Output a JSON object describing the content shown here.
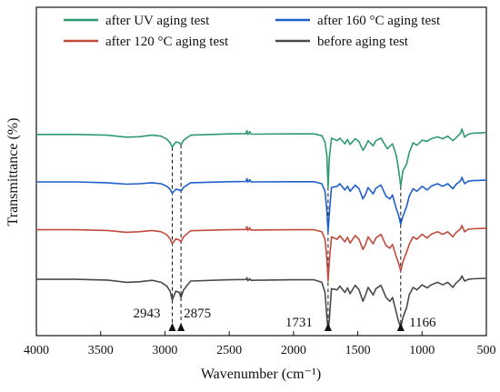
{
  "chart_data": {
    "type": "line",
    "title": "",
    "xlabel": "Wavenumber (cm⁻¹)",
    "ylabel": "Transmittance (%)",
    "xlim": [
      4000,
      500
    ],
    "x_reversed": true,
    "x_ticks": [
      4000,
      3500,
      3000,
      2500,
      2000,
      1500,
      1000,
      500
    ],
    "x_tick_labels": [
      "4000",
      "3500",
      "3000",
      "2500",
      "2000",
      "1500",
      "1000",
      "500"
    ],
    "y_ticks_shown": false,
    "ylim": [
      0,
      1
    ],
    "legend": {
      "placement": "top",
      "columns": 2,
      "entries": [
        "after UV aging test",
        "after 160 °C aging test",
        "after 120 °C aging test",
        "before aging test"
      ]
    },
    "annotations": [
      {
        "x": 2943,
        "label": "2943"
      },
      {
        "x": 2875,
        "label": "2875"
      },
      {
        "x": 1731,
        "label": "1731"
      },
      {
        "x": 1166,
        "label": "1166"
      }
    ],
    "series": [
      {
        "name": "after UV aging test",
        "color": "#2e9a6e",
        "points": [
          [
            4000,
            0.785
          ],
          [
            3700,
            0.785
          ],
          [
            3450,
            0.782
          ],
          [
            3300,
            0.774
          ],
          [
            3200,
            0.776
          ],
          [
            3100,
            0.782
          ],
          [
            3030,
            0.778
          ],
          [
            2985,
            0.766
          ],
          [
            2960,
            0.752
          ],
          [
            2943,
            0.735
          ],
          [
            2915,
            0.755
          ],
          [
            2890,
            0.752
          ],
          [
            2875,
            0.744
          ],
          [
            2855,
            0.762
          ],
          [
            2800,
            0.782
          ],
          [
            2500,
            0.787
          ],
          [
            2370,
            0.788
          ],
          [
            2362,
            0.8
          ],
          [
            2355,
            0.784
          ],
          [
            2340,
            0.796
          ],
          [
            2332,
            0.786
          ],
          [
            2000,
            0.787
          ],
          [
            1840,
            0.787
          ],
          [
            1780,
            0.78
          ],
          [
            1755,
            0.755
          ],
          [
            1740,
            0.7
          ],
          [
            1731,
            0.578
          ],
          [
            1722,
            0.69
          ],
          [
            1705,
            0.77
          ],
          [
            1660,
            0.76
          ],
          [
            1640,
            0.77
          ],
          [
            1600,
            0.748
          ],
          [
            1580,
            0.765
          ],
          [
            1560,
            0.745
          ],
          [
            1520,
            0.768
          ],
          [
            1490,
            0.756
          ],
          [
            1460,
            0.722
          ],
          [
            1440,
            0.738
          ],
          [
            1420,
            0.76
          ],
          [
            1380,
            0.74
          ],
          [
            1360,
            0.76
          ],
          [
            1320,
            0.77
          ],
          [
            1270,
            0.728
          ],
          [
            1250,
            0.738
          ],
          [
            1230,
            0.748
          ],
          [
            1200,
            0.7
          ],
          [
            1185,
            0.655
          ],
          [
            1166,
            0.58
          ],
          [
            1150,
            0.64
          ],
          [
            1120,
            0.668
          ],
          [
            1100,
            0.712
          ],
          [
            1070,
            0.752
          ],
          [
            1040,
            0.742
          ],
          [
            1000,
            0.762
          ],
          [
            960,
            0.758
          ],
          [
            930,
            0.768
          ],
          [
            880,
            0.775
          ],
          [
            840,
            0.768
          ],
          [
            800,
            0.778
          ],
          [
            760,
            0.76
          ],
          [
            740,
            0.77
          ],
          [
            700,
            0.79
          ],
          [
            690,
            0.806
          ],
          [
            670,
            0.774
          ],
          [
            640,
            0.786
          ],
          [
            600,
            0.79
          ],
          [
            500,
            0.792
          ]
        ]
      },
      {
        "name": "after 160 °C aging test",
        "color": "#1f5fcc",
        "points": [
          [
            4000,
            0.597
          ],
          [
            3700,
            0.597
          ],
          [
            3450,
            0.594
          ],
          [
            3300,
            0.588
          ],
          [
            3200,
            0.59
          ],
          [
            3100,
            0.594
          ],
          [
            3030,
            0.59
          ],
          [
            2985,
            0.58
          ],
          [
            2960,
            0.568
          ],
          [
            2943,
            0.552
          ],
          [
            2915,
            0.568
          ],
          [
            2890,
            0.566
          ],
          [
            2875,
            0.56
          ],
          [
            2855,
            0.576
          ],
          [
            2800,
            0.594
          ],
          [
            2500,
            0.598
          ],
          [
            2370,
            0.599
          ],
          [
            2362,
            0.61
          ],
          [
            2355,
            0.596
          ],
          [
            2340,
            0.606
          ],
          [
            2332,
            0.597
          ],
          [
            2000,
            0.598
          ],
          [
            1840,
            0.598
          ],
          [
            1780,
            0.59
          ],
          [
            1755,
            0.56
          ],
          [
            1740,
            0.48
          ],
          [
            1731,
            0.4
          ],
          [
            1722,
            0.47
          ],
          [
            1705,
            0.575
          ],
          [
            1660,
            0.58
          ],
          [
            1640,
            0.59
          ],
          [
            1600,
            0.565
          ],
          [
            1580,
            0.58
          ],
          [
            1560,
            0.56
          ],
          [
            1520,
            0.584
          ],
          [
            1490,
            0.57
          ],
          [
            1460,
            0.53
          ],
          [
            1440,
            0.548
          ],
          [
            1420,
            0.575
          ],
          [
            1380,
            0.55
          ],
          [
            1360,
            0.572
          ],
          [
            1320,
            0.585
          ],
          [
            1280,
            0.54
          ],
          [
            1250,
            0.53
          ],
          [
            1230,
            0.545
          ],
          [
            1200,
            0.49
          ],
          [
            1185,
            0.47
          ],
          [
            1166,
            0.43
          ],
          [
            1150,
            0.46
          ],
          [
            1120,
            0.5
          ],
          [
            1100,
            0.54
          ],
          [
            1070,
            0.57
          ],
          [
            1040,
            0.56
          ],
          [
            1000,
            0.58
          ],
          [
            960,
            0.565
          ],
          [
            930,
            0.58
          ],
          [
            880,
            0.59
          ],
          [
            840,
            0.58
          ],
          [
            800,
            0.59
          ],
          [
            760,
            0.57
          ],
          [
            740,
            0.585
          ],
          [
            700,
            0.602
          ],
          [
            690,
            0.615
          ],
          [
            670,
            0.59
          ],
          [
            640,
            0.6
          ],
          [
            600,
            0.602
          ],
          [
            500,
            0.604
          ]
        ]
      },
      {
        "name": "after 120 °C aging test",
        "color": "#c04b3c",
        "points": [
          [
            4000,
            0.408
          ],
          [
            3700,
            0.408
          ],
          [
            3450,
            0.405
          ],
          [
            3300,
            0.398
          ],
          [
            3200,
            0.4
          ],
          [
            3100,
            0.405
          ],
          [
            3030,
            0.4
          ],
          [
            2985,
            0.388
          ],
          [
            2960,
            0.372
          ],
          [
            2943,
            0.352
          ],
          [
            2915,
            0.372
          ],
          [
            2890,
            0.368
          ],
          [
            2875,
            0.36
          ],
          [
            2855,
            0.38
          ],
          [
            2800,
            0.404
          ],
          [
            2500,
            0.408
          ],
          [
            2370,
            0.409
          ],
          [
            2362,
            0.42
          ],
          [
            2355,
            0.405
          ],
          [
            2340,
            0.416
          ],
          [
            2332,
            0.407
          ],
          [
            2000,
            0.408
          ],
          [
            1840,
            0.408
          ],
          [
            1780,
            0.4
          ],
          [
            1755,
            0.37
          ],
          [
            1740,
            0.29
          ],
          [
            1731,
            0.205
          ],
          [
            1722,
            0.28
          ],
          [
            1705,
            0.38
          ],
          [
            1660,
            0.37
          ],
          [
            1640,
            0.384
          ],
          [
            1600,
            0.36
          ],
          [
            1580,
            0.378
          ],
          [
            1560,
            0.355
          ],
          [
            1520,
            0.385
          ],
          [
            1490,
            0.37
          ],
          [
            1460,
            0.33
          ],
          [
            1440,
            0.35
          ],
          [
            1420,
            0.38
          ],
          [
            1380,
            0.352
          ],
          [
            1360,
            0.375
          ],
          [
            1320,
            0.39
          ],
          [
            1280,
            0.345
          ],
          [
            1250,
            0.335
          ],
          [
            1230,
            0.35
          ],
          [
            1200,
            0.3
          ],
          [
            1185,
            0.28
          ],
          [
            1166,
            0.245
          ],
          [
            1150,
            0.28
          ],
          [
            1120,
            0.32
          ],
          [
            1100,
            0.35
          ],
          [
            1070,
            0.38
          ],
          [
            1040,
            0.37
          ],
          [
            1000,
            0.39
          ],
          [
            960,
            0.375
          ],
          [
            930,
            0.39
          ],
          [
            880,
            0.4
          ],
          [
            840,
            0.39
          ],
          [
            800,
            0.4
          ],
          [
            760,
            0.38
          ],
          [
            740,
            0.395
          ],
          [
            700,
            0.412
          ],
          [
            690,
            0.425
          ],
          [
            670,
            0.4
          ],
          [
            640,
            0.41
          ],
          [
            600,
            0.412
          ],
          [
            500,
            0.414
          ]
        ]
      },
      {
        "name": "before aging test",
        "color": "#4a4a4a",
        "points": [
          [
            4000,
            0.212
          ],
          [
            3700,
            0.212
          ],
          [
            3450,
            0.209
          ],
          [
            3300,
            0.2
          ],
          [
            3200,
            0.202
          ],
          [
            3100,
            0.208
          ],
          [
            3030,
            0.2
          ],
          [
            2985,
            0.185
          ],
          [
            2960,
            0.165
          ],
          [
            2943,
            0.13
          ],
          [
            2915,
            0.165
          ],
          [
            2890,
            0.16
          ],
          [
            2875,
            0.14
          ],
          [
            2855,
            0.17
          ],
          [
            2800,
            0.205
          ],
          [
            2500,
            0.21
          ],
          [
            2370,
            0.211
          ],
          [
            2362,
            0.218
          ],
          [
            2355,
            0.206
          ],
          [
            2340,
            0.214
          ],
          [
            2332,
            0.208
          ],
          [
            2000,
            0.21
          ],
          [
            1840,
            0.21
          ],
          [
            1780,
            0.2
          ],
          [
            1755,
            0.16
          ],
          [
            1740,
            0.06
          ],
          [
            1731,
            0.01
          ],
          [
            1722,
            0.05
          ],
          [
            1705,
            0.175
          ],
          [
            1660,
            0.17
          ],
          [
            1640,
            0.185
          ],
          [
            1600,
            0.16
          ],
          [
            1580,
            0.178
          ],
          [
            1560,
            0.155
          ],
          [
            1520,
            0.188
          ],
          [
            1490,
            0.17
          ],
          [
            1460,
            0.125
          ],
          [
            1440,
            0.15
          ],
          [
            1420,
            0.18
          ],
          [
            1380,
            0.15
          ],
          [
            1360,
            0.175
          ],
          [
            1320,
            0.188
          ],
          [
            1280,
            0.14
          ],
          [
            1250,
            0.125
          ],
          [
            1230,
            0.14
          ],
          [
            1200,
            0.08
          ],
          [
            1185,
            0.05
          ],
          [
            1166,
            0.02
          ],
          [
            1150,
            0.06
          ],
          [
            1120,
            0.1
          ],
          [
            1100,
            0.15
          ],
          [
            1070,
            0.18
          ],
          [
            1040,
            0.17
          ],
          [
            1000,
            0.19
          ],
          [
            960,
            0.178
          ],
          [
            930,
            0.19
          ],
          [
            880,
            0.2
          ],
          [
            840,
            0.19
          ],
          [
            800,
            0.2
          ],
          [
            760,
            0.18
          ],
          [
            740,
            0.195
          ],
          [
            700,
            0.214
          ],
          [
            690,
            0.225
          ],
          [
            670,
            0.205
          ],
          [
            640,
            0.212
          ],
          [
            600,
            0.214
          ],
          [
            500,
            0.216
          ]
        ]
      }
    ]
  }
}
